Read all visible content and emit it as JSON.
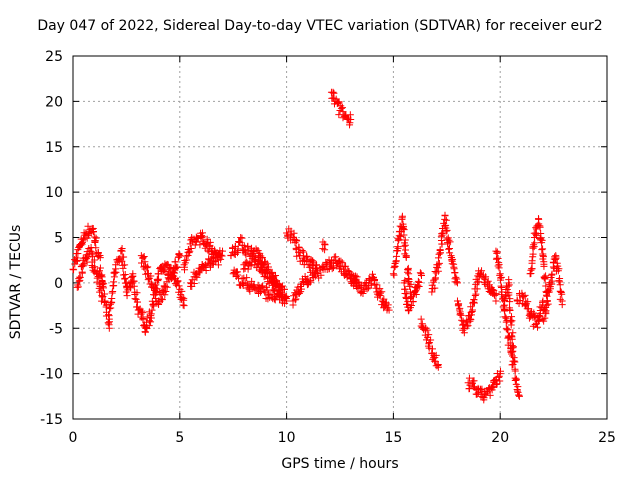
{
  "chart_data": {
    "type": "scatter",
    "title": "Day 047 of 2022, Sidereal Day-to-day VTEC variation (SDTVAR) for receiver eur2",
    "xlabel": "GPS time / hours",
    "ylabel": "SDTVAR / TECUs",
    "xlim": [
      0,
      25
    ],
    "ylim": [
      -15,
      25
    ],
    "xticks": [
      0,
      5,
      10,
      15,
      20,
      25
    ],
    "yticks": [
      -15,
      -10,
      -5,
      0,
      5,
      10,
      15,
      20,
      25
    ],
    "grid": true,
    "marker": "+",
    "color": "#ff0000",
    "series": [
      {
        "name": "SDTVAR",
        "segments": [
          {
            "x": [
              0.0,
              0.3,
              0.6,
              0.9,
              1.2,
              1.5,
              1.7
            ],
            "y": [
              1.5,
              4.0,
              5.5,
              6.0,
              3.0,
              -2.0,
              -5.0
            ]
          },
          {
            "x": [
              0.2,
              0.5,
              0.8,
              1.1,
              1.4
            ],
            "y": [
              -0.5,
              2.5,
              3.5,
              1.0,
              -1.5
            ]
          },
          {
            "x": [
              1.7,
              2.0,
              2.3,
              2.5,
              2.8
            ],
            "y": [
              -4.0,
              2.0,
              3.5,
              -1.0,
              1.0
            ]
          },
          {
            "x": [
              2.8,
              3.1,
              3.4,
              3.7,
              4.0,
              4.4,
              4.8,
              5.2
            ],
            "y": [
              0.0,
              -3.0,
              -5.0,
              -3.0,
              1.0,
              2.0,
              0.5,
              -2.5
            ]
          },
          {
            "x": [
              3.2,
              3.5,
              4.0,
              4.5,
              5.0
            ],
            "y": [
              3.0,
              1.0,
              -2.0,
              0.5,
              3.0
            ]
          },
          {
            "x": [
              5.2,
              5.6,
              6.0,
              6.4,
              6.8
            ],
            "y": [
              2.0,
              4.5,
              5.0,
              4.0,
              2.5
            ]
          },
          {
            "x": [
              5.5,
              6.0,
              6.5,
              7.0
            ],
            "y": [
              0.0,
              1.5,
              2.5,
              3.5
            ]
          },
          {
            "x": [
              7.4,
              7.8,
              8.2,
              8.7,
              9.2,
              9.7
            ],
            "y": [
              3.0,
              4.5,
              3.5,
              3.0,
              1.0,
              -1.0
            ]
          },
          {
            "x": [
              7.5,
              8.0,
              8.5,
              9.0,
              9.5,
              10.0
            ],
            "y": [
              1.0,
              0.0,
              -0.5,
              -1.0,
              -1.5,
              -2.0
            ]
          },
          {
            "x": [
              8.0,
              8.5,
              9.0,
              9.5,
              10.0
            ],
            "y": [
              2.0,
              2.5,
              1.0,
              0.0,
              -1.5
            ]
          },
          {
            "x": [
              10.0,
              10.3,
              10.6,
              11.0,
              11.4
            ],
            "y": [
              5.5,
              5.0,
              3.0,
              2.5,
              2.0
            ]
          },
          {
            "x": [
              10.3,
              10.8,
              11.3,
              11.8,
              12.3,
              12.8,
              13.3
            ],
            "y": [
              -2.0,
              0.0,
              1.0,
              1.5,
              2.5,
              1.0,
              0.0
            ]
          },
          {
            "x": [
              12.1,
              12.3,
              12.5,
              12.7,
              12.9,
              13.0
            ],
            "y": [
              21.0,
              20.0,
              19.0,
              18.5,
              18.0,
              18.0
            ]
          },
          {
            "x": [
              11.7,
              11.8
            ],
            "y": [
              4.5,
              4.2
            ]
          },
          {
            "x": [
              13.0,
              13.5,
              14.0,
              14.5,
              14.8
            ],
            "y": [
              0.5,
              -1.0,
              0.5,
              -2.0,
              -3.0
            ]
          },
          {
            "x": [
              15.0,
              15.2,
              15.4,
              15.6,
              15.8
            ],
            "y": [
              1.0,
              4.0,
              7.0,
              3.0,
              -1.0
            ]
          },
          {
            "x": [
              15.5,
              15.7,
              16.0,
              16.3
            ],
            "y": [
              0.0,
              -3.0,
              -1.0,
              1.0
            ]
          },
          {
            "x": [
              16.3,
              16.6,
              16.9,
              17.1
            ],
            "y": [
              -4.0,
              -6.0,
              -8.0,
              -9.0
            ]
          },
          {
            "x": [
              16.8,
              17.1,
              17.4,
              17.7,
              18.0
            ],
            "y": [
              -1.0,
              2.0,
              7.0,
              3.0,
              0.0
            ]
          },
          {
            "x": [
              18.0,
              18.3,
              18.6,
              19.0,
              19.4,
              19.8
            ],
            "y": [
              -2.0,
              -5.0,
              -4.0,
              1.0,
              0.0,
              -2.0
            ]
          },
          {
            "x": [
              18.5,
              18.8,
              19.1,
              19.4,
              19.7,
              20.0
            ],
            "y": [
              -11.0,
              -11.5,
              -12.5,
              -12.0,
              -11.5,
              -10.0
            ]
          },
          {
            "x": [
              19.8,
              20.0,
              20.2,
              20.4,
              20.6
            ],
            "y": [
              3.5,
              1.0,
              -3.0,
              -6.0,
              -9.0
            ]
          },
          {
            "x": [
              20.2,
              20.4,
              20.7,
              20.9
            ],
            "y": [
              -2.0,
              0.0,
              -10.5,
              -12.5
            ]
          },
          {
            "x": [
              20.8,
              21.1,
              21.4,
              21.7,
              22.0
            ],
            "y": [
              -2.0,
              -1.5,
              -3.5,
              -4.5,
              -2.0
            ]
          },
          {
            "x": [
              21.4,
              21.6,
              21.8,
              22.0,
              22.2
            ],
            "y": [
              1.0,
              5.0,
              7.0,
              3.0,
              -2.0
            ]
          },
          {
            "x": [
              22.0,
              22.3,
              22.6,
              22.9
            ],
            "y": [
              -4.0,
              -1.0,
              3.0,
              -2.0
            ]
          }
        ]
      }
    ]
  }
}
